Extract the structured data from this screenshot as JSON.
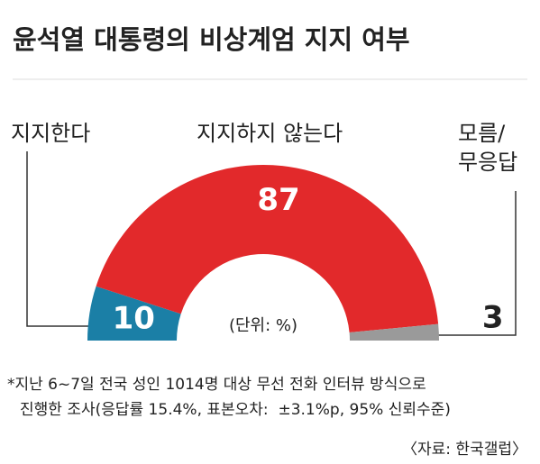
{
  "chart_data": {
    "type": "pie",
    "title": "윤석열 대통령의 비상계엄 지지 여부",
    "categories": [
      "지지한다",
      "지지하지 않는다",
      "모름/\n무응답"
    ],
    "values": [
      10,
      87,
      3
    ],
    "colors": [
      "#1b7fa6",
      "#e2292b",
      "#9a9a9a"
    ],
    "unit_label": "(단위: %)",
    "notes": [
      "*지난 6~7일 전국 성인 1014명 대상 무선 전화 인터뷰 방식으로",
      "진행한 조사(응답률 15.4%, 표본오차:  ±3.1%p, 95% 신뢰수준)"
    ],
    "source": "〈자료: 한국갤럽〉"
  }
}
